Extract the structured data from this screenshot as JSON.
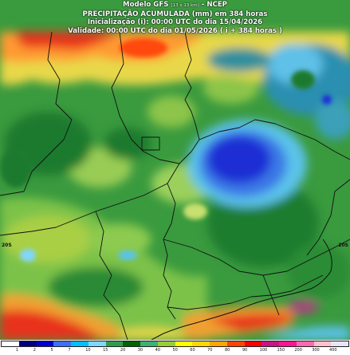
{
  "header": {
    "model_prefix": "Modelo GFS",
    "model_resolution": "[13 x 13 km]",
    "model_suffix": " - NCEP",
    "product": "PRECIPITAÇÃO ACUMULADA (mm) em 384 horas",
    "initialization": "Inicialização (i): 00:00 UTC do dia 15/04/2026",
    "validity": "Validade: 00:00 UTC do dia 01/05/2026 ( i + 384 horas )"
  },
  "map_labels": {
    "lat_left": "20S",
    "lat_right": "20S"
  },
  "legend": {
    "ticks": [
      "1",
      "2",
      "5",
      "7",
      "10",
      "15",
      "20",
      "30",
      "40",
      "50",
      "60",
      "70",
      "80",
      "90",
      "100",
      "150",
      "200",
      "300",
      "400"
    ],
    "colors": [
      "#ffffff",
      "#000080",
      "#0000cd",
      "#3a6fff",
      "#00bfff",
      "#7fd7ff",
      "#2f9e4c",
      "#006400",
      "#3cb371",
      "#9acd32",
      "#ffff00",
      "#ffd700",
      "#ffa500",
      "#ff4500",
      "#ff0000",
      "#c71585",
      "#ff1493",
      "#ff69b4",
      "#ffc0cb",
      "#e6e6fa"
    ]
  }
}
